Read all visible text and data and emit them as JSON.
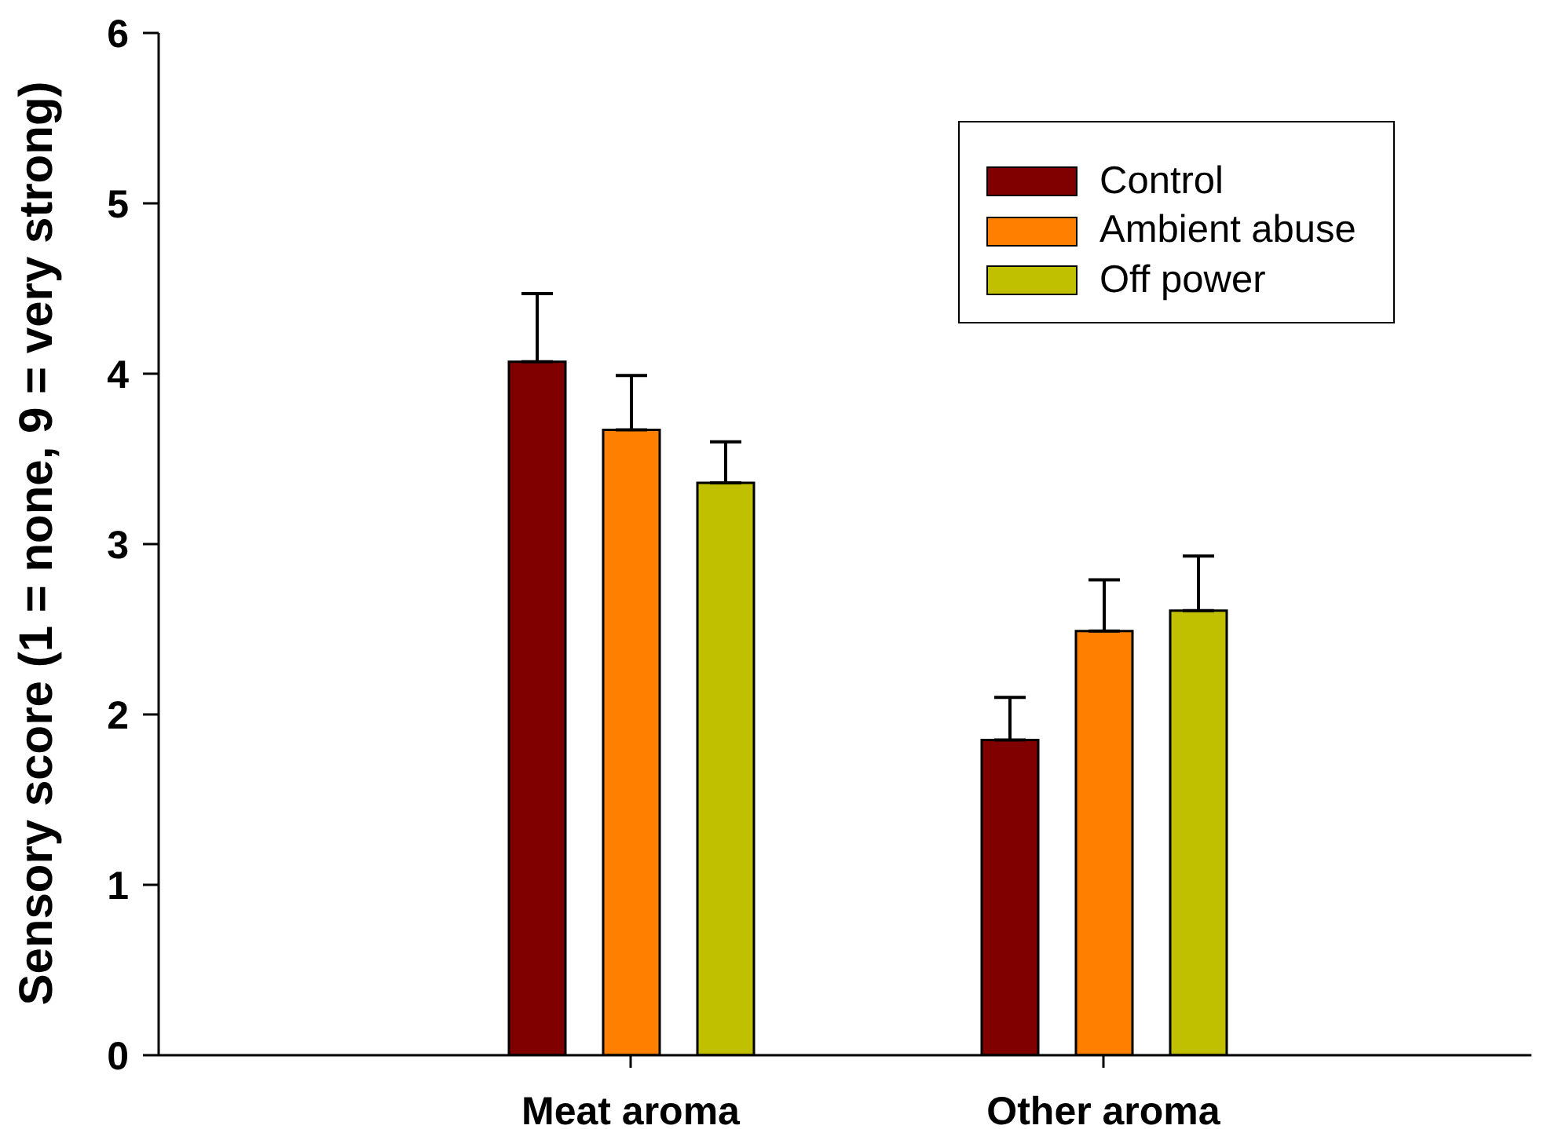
{
  "chart_data": {
    "type": "bar",
    "ylabel": "Sensory score (1 = none, 9 = very strong)",
    "categories": [
      "Meat aroma",
      "Other aroma"
    ],
    "series": [
      {
        "name": "Control",
        "color": "#800000",
        "values": [
          4.07,
          1.85
        ],
        "errors": [
          [
            4.07,
            4.47
          ],
          [
            1.85,
            2.1
          ]
        ]
      },
      {
        "name": "Ambient abuse",
        "color": "#ff8000",
        "values": [
          3.67,
          2.49
        ],
        "errors": [
          [
            3.67,
            3.99
          ],
          [
            2.49,
            2.79
          ]
        ]
      },
      {
        "name": "Off power",
        "color": "#c0c000",
        "values": [
          3.36,
          2.61
        ],
        "errors": [
          [
            3.36,
            3.6
          ],
          [
            2.61,
            2.93
          ]
        ]
      }
    ],
    "ylim": [
      0,
      6
    ],
    "yticks": [
      0,
      1,
      2,
      3,
      4,
      5,
      6
    ],
    "legend": "top right"
  }
}
